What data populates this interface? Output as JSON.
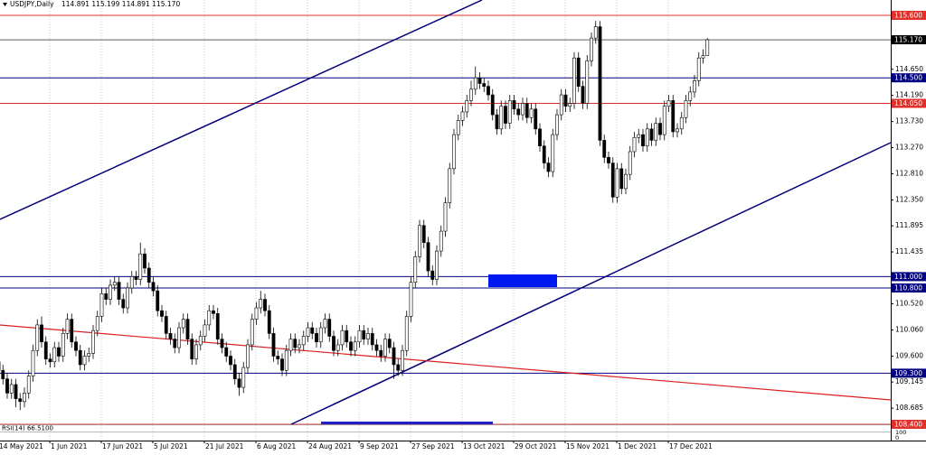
{
  "chart_data": {
    "type": "candlestick",
    "symbol": "USDJPY,Daily",
    "price_header": "114.891 115.199 114.891 115.170",
    "indicator": "RSI(14) 66.5100",
    "indicator_ticks": [
      "100",
      "0"
    ],
    "up_color": "#ffffff",
    "down_color": "#000000",
    "grid": true,
    "ylim": [
      108.4,
      115.87
    ],
    "yticks": [
      {
        "value": 114.65,
        "label": "114.650"
      },
      {
        "value": 114.19,
        "label": "114.190"
      },
      {
        "value": 113.73,
        "label": "113.730"
      },
      {
        "value": 113.27,
        "label": "113.270"
      },
      {
        "value": 112.81,
        "label": "112.810"
      },
      {
        "value": 112.35,
        "label": "112.350"
      },
      {
        "value": 111.895,
        "label": "111.895"
      },
      {
        "value": 111.435,
        "label": "111.435"
      },
      {
        "value": 110.52,
        "label": "110.520"
      },
      {
        "value": 110.06,
        "label": "110.060"
      },
      {
        "value": 109.6,
        "label": "109.600"
      },
      {
        "value": 109.145,
        "label": "109.145"
      },
      {
        "value": 108.685,
        "label": "108.685"
      }
    ],
    "levels": [
      {
        "value": 115.6,
        "label": "115.600",
        "color": "#e0302a"
      },
      {
        "value": 114.5,
        "label": "114.500",
        "color": "#000080"
      },
      {
        "value": 114.05,
        "label": "114.050",
        "color": "#e0302a"
      },
      {
        "value": 111,
        "label": "111.000",
        "color": "#000080"
      },
      {
        "value": 110.8,
        "label": "110.800",
        "color": "#000080"
      },
      {
        "value": 109.3,
        "label": "109.300",
        "color": "#000080"
      },
      {
        "value": 108.4,
        "label": "108.400",
        "color": "#e0302a"
      }
    ],
    "last_price": {
      "value": 115.17,
      "label": "115.170",
      "color": "#000000"
    },
    "categories": [
      "14 May 2021",
      null,
      null,
      null,
      null,
      null,
      null,
      null,
      null,
      null,
      null,
      null,
      "1 Jun 2021",
      null,
      null,
      null,
      null,
      null,
      null,
      null,
      null,
      null,
      null,
      null,
      "17 Jun 2021",
      null,
      null,
      null,
      null,
      null,
      null,
      null,
      null,
      null,
      null,
      null,
      "5 Jul 2021",
      null,
      null,
      null,
      null,
      null,
      null,
      null,
      null,
      null,
      null,
      null,
      "21 Jul 2021",
      null,
      null,
      null,
      null,
      null,
      null,
      null,
      null,
      null,
      null,
      null,
      "6 Aug 2021",
      null,
      null,
      null,
      null,
      null,
      null,
      null,
      null,
      null,
      null,
      null,
      "24 Aug 2021",
      null,
      null,
      null,
      null,
      null,
      null,
      null,
      null,
      null,
      null,
      null,
      "9 Sep 2021",
      null,
      null,
      null,
      null,
      null,
      null,
      null,
      null,
      null,
      null,
      null,
      "27 Sep 2021",
      null,
      null,
      null,
      null,
      null,
      null,
      null,
      null,
      null,
      null,
      null,
      "13 Oct 2021",
      null,
      null,
      null,
      null,
      null,
      null,
      null,
      null,
      null,
      null,
      null,
      "29 Oct 2021",
      null,
      null,
      null,
      null,
      null,
      null,
      null,
      null,
      null,
      null,
      null,
      "15 Nov 2021",
      null,
      null,
      null,
      null,
      null,
      null,
      null,
      null,
      null,
      null,
      null,
      "1 Dec 2021",
      null,
      null,
      null,
      null,
      null,
      null,
      null,
      null,
      null,
      null,
      null,
      "17 Dec 2021",
      null,
      null,
      null,
      null,
      null,
      null,
      null,
      null,
      null
    ],
    "ohlc": [
      [
        109.5,
        109.6,
        109.25,
        109.35
      ],
      [
        109.35,
        109.45,
        109.1,
        109.2
      ],
      [
        109.2,
        109.3,
        108.85,
        108.95
      ],
      [
        108.95,
        109.2,
        108.85,
        109.1
      ],
      [
        109.1,
        109.2,
        108.7,
        108.85
      ],
      [
        108.85,
        108.95,
        108.65,
        108.8
      ],
      [
        108.8,
        109.05,
        108.7,
        108.95
      ],
      [
        108.95,
        109.35,
        108.85,
        109.25
      ],
      [
        109.25,
        109.8,
        109.15,
        109.7
      ],
      [
        109.7,
        110.25,
        109.6,
        110.15
      ],
      [
        110.15,
        110.3,
        109.75,
        109.85
      ],
      [
        109.85,
        109.95,
        109.45,
        109.55
      ],
      [
        109.55,
        109.65,
        109.4,
        109.5
      ],
      [
        109.5,
        109.85,
        109.4,
        109.75
      ],
      [
        109.75,
        109.85,
        109.5,
        109.6
      ],
      [
        109.6,
        110.1,
        109.5,
        110
      ],
      [
        110,
        110.35,
        109.9,
        110.25
      ],
      [
        110.25,
        110.35,
        109.75,
        109.85
      ],
      [
        109.85,
        109.95,
        109.6,
        109.7
      ],
      [
        109.7,
        109.8,
        109.35,
        109.45
      ],
      [
        109.45,
        109.7,
        109.35,
        109.6
      ],
      [
        109.6,
        109.75,
        109.5,
        109.65
      ],
      [
        109.65,
        110.15,
        109.55,
        110.05
      ],
      [
        110.05,
        110.4,
        109.95,
        110.3
      ],
      [
        110.3,
        110.8,
        110.2,
        110.7
      ],
      [
        110.7,
        110.8,
        110.5,
        110.6
      ],
      [
        110.6,
        110.95,
        110.5,
        110.85
      ],
      [
        110.85,
        111,
        110.75,
        110.9
      ],
      [
        110.9,
        111,
        110.5,
        110.6
      ],
      [
        110.6,
        110.7,
        110.35,
        110.45
      ],
      [
        110.45,
        110.9,
        110.35,
        110.8
      ],
      [
        110.8,
        111.1,
        110.7,
        111
      ],
      [
        111,
        111.1,
        110.85,
        110.95
      ],
      [
        110.95,
        111.6,
        110.85,
        111.4
      ],
      [
        111.4,
        111.5,
        111.05,
        111.15
      ],
      [
        111.15,
        111.25,
        110.8,
        110.9
      ],
      [
        110.9,
        111,
        110.65,
        110.75
      ],
      [
        110.75,
        110.85,
        110.3,
        110.4
      ],
      [
        110.4,
        110.5,
        110.2,
        110.3
      ],
      [
        110.3,
        110.4,
        109.9,
        110
      ],
      [
        110,
        110.1,
        109.8,
        109.9
      ],
      [
        109.9,
        110,
        109.65,
        109.75
      ],
      [
        109.75,
        110.2,
        109.65,
        110.1
      ],
      [
        110.1,
        110.35,
        110,
        110.25
      ],
      [
        110.25,
        110.35,
        109.8,
        109.9
      ],
      [
        109.9,
        110,
        109.45,
        109.55
      ],
      [
        109.55,
        109.9,
        109.45,
        109.8
      ],
      [
        109.8,
        110.05,
        109.7,
        109.95
      ],
      [
        109.95,
        110.25,
        109.85,
        110.15
      ],
      [
        110.15,
        110.5,
        110.05,
        110.4
      ],
      [
        110.4,
        110.5,
        110.25,
        110.35
      ],
      [
        110.35,
        110.45,
        109.8,
        109.9
      ],
      [
        109.9,
        110,
        109.65,
        109.75
      ],
      [
        109.75,
        109.85,
        109.5,
        109.6
      ],
      [
        109.6,
        109.7,
        109.35,
        109.45
      ],
      [
        109.45,
        109.55,
        109.1,
        109.2
      ],
      [
        109.2,
        109.3,
        108.9,
        109.05
      ],
      [
        109.05,
        109.5,
        108.95,
        109.4
      ],
      [
        109.4,
        109.9,
        109.3,
        109.8
      ],
      [
        109.8,
        110.35,
        109.7,
        110.25
      ],
      [
        110.25,
        110.55,
        110.15,
        110.45
      ],
      [
        110.45,
        110.75,
        110.35,
        110.6
      ],
      [
        110.6,
        110.7,
        110.3,
        110.4
      ],
      [
        110.4,
        110.5,
        109.9,
        110
      ],
      [
        110,
        110.1,
        109.5,
        109.6
      ],
      [
        109.6,
        109.7,
        109.45,
        109.55
      ],
      [
        109.55,
        109.65,
        109.25,
        109.35
      ],
      [
        109.35,
        109.8,
        109.25,
        109.7
      ],
      [
        109.7,
        110,
        109.6,
        109.9
      ],
      [
        109.9,
        110,
        109.65,
        109.75
      ],
      [
        109.75,
        109.9,
        109.65,
        109.8
      ],
      [
        109.8,
        110.05,
        109.7,
        109.95
      ],
      [
        109.95,
        110.2,
        109.85,
        110.1
      ],
      [
        110.1,
        110.2,
        109.9,
        110
      ],
      [
        110,
        110.1,
        109.75,
        109.85
      ],
      [
        109.85,
        110.2,
        109.75,
        110.1
      ],
      [
        110.1,
        110.35,
        110,
        110.25
      ],
      [
        110.25,
        110.35,
        109.85,
        109.95
      ],
      [
        109.95,
        110.05,
        109.6,
        109.7
      ],
      [
        109.7,
        109.9,
        109.6,
        109.8
      ],
      [
        109.8,
        110.15,
        109.7,
        110.05
      ],
      [
        110.05,
        110.15,
        109.75,
        109.85
      ],
      [
        109.85,
        109.95,
        109.6,
        109.7
      ],
      [
        109.7,
        109.95,
        109.6,
        109.85
      ],
      [
        109.85,
        110.15,
        109.75,
        110.05
      ],
      [
        110.05,
        110.15,
        109.8,
        109.9
      ],
      [
        109.9,
        110.1,
        109.8,
        110
      ],
      [
        110,
        110.1,
        109.7,
        109.8
      ],
      [
        109.8,
        109.9,
        109.6,
        109.7
      ],
      [
        109.7,
        109.8,
        109.5,
        109.6
      ],
      [
        109.6,
        110,
        109.5,
        109.9
      ],
      [
        109.9,
        110,
        109.65,
        109.75
      ],
      [
        109.75,
        109.85,
        109.2,
        109.45
      ],
      [
        109.45,
        109.55,
        109.25,
        109.35
      ],
      [
        109.35,
        109.8,
        109.25,
        109.7
      ],
      [
        109.7,
        110.4,
        109.6,
        110.3
      ],
      [
        110.3,
        111,
        110.2,
        110.9
      ],
      [
        110.9,
        111.45,
        110.8,
        111.35
      ],
      [
        111.35,
        112,
        111.25,
        111.9
      ],
      [
        111.9,
        112,
        111.5,
        111.6
      ],
      [
        111.6,
        111.7,
        111,
        111.1
      ],
      [
        111.1,
        111.2,
        110.85,
        110.95
      ],
      [
        110.95,
        111.55,
        110.85,
        111.45
      ],
      [
        111.45,
        111.9,
        111.35,
        111.8
      ],
      [
        111.8,
        112.4,
        111.7,
        112.3
      ],
      [
        112.3,
        113,
        112.2,
        112.9
      ],
      [
        112.9,
        113.6,
        112.8,
        113.5
      ],
      [
        113.5,
        113.85,
        113.4,
        113.75
      ],
      [
        113.75,
        114,
        113.65,
        113.9
      ],
      [
        113.9,
        114.2,
        113.8,
        114.1
      ],
      [
        114.1,
        114.45,
        114,
        114.3
      ],
      [
        114.3,
        114.7,
        114.2,
        114.5
      ],
      [
        114.5,
        114.6,
        114.3,
        114.4
      ],
      [
        114.4,
        114.5,
        114.25,
        114.35
      ],
      [
        114.35,
        114.45,
        114.1,
        114.2
      ],
      [
        114.2,
        114.3,
        113.75,
        113.85
      ],
      [
        113.85,
        113.95,
        113.5,
        113.6
      ],
      [
        113.6,
        114.1,
        113.5,
        114
      ],
      [
        114,
        114.1,
        113.6,
        113.7
      ],
      [
        113.7,
        114.2,
        113.6,
        114.1
      ],
      [
        114.1,
        114.2,
        113.85,
        113.95
      ],
      [
        113.95,
        114.05,
        113.75,
        113.85
      ],
      [
        113.85,
        114.15,
        113.75,
        114.05
      ],
      [
        114.05,
        114.15,
        113.7,
        113.8
      ],
      [
        113.8,
        114.05,
        113.7,
        113.95
      ],
      [
        113.95,
        114.05,
        113.5,
        113.6
      ],
      [
        113.6,
        113.7,
        113.2,
        113.3
      ],
      [
        113.3,
        113.4,
        112.9,
        113
      ],
      [
        113,
        113.1,
        112.75,
        112.85
      ],
      [
        112.85,
        113.6,
        112.75,
        113.5
      ],
      [
        113.5,
        113.95,
        113.4,
        113.85
      ],
      [
        113.85,
        114.3,
        113.75,
        114.2
      ],
      [
        114.2,
        114.3,
        113.9,
        114
      ],
      [
        114,
        114.15,
        113.9,
        114.05
      ],
      [
        114.05,
        114.95,
        113.95,
        114.85
      ],
      [
        114.85,
        114.95,
        114.25,
        114.35
      ],
      [
        114.35,
        114.45,
        113.95,
        114.05
      ],
      [
        114.05,
        114.9,
        113.95,
        114.8
      ],
      [
        114.8,
        115.3,
        114.7,
        115.2
      ],
      [
        115.2,
        115.5,
        115.1,
        115.4
      ],
      [
        115.4,
        115.5,
        113.3,
        113.4
      ],
      [
        113.4,
        113.5,
        113,
        113.1
      ],
      [
        113.1,
        113.2,
        112.9,
        113
      ],
      [
        113,
        113.1,
        112.3,
        112.4
      ],
      [
        112.4,
        113,
        112.3,
        112.9
      ],
      [
        112.9,
        113,
        112.45,
        112.55
      ],
      [
        112.55,
        112.9,
        112.45,
        112.8
      ],
      [
        112.8,
        113.3,
        112.7,
        113.2
      ],
      [
        113.2,
        113.55,
        113.1,
        113.45
      ],
      [
        113.45,
        113.6,
        113.35,
        113.5
      ],
      [
        113.5,
        113.6,
        113.2,
        113.3
      ],
      [
        113.3,
        113.7,
        113.2,
        113.6
      ],
      [
        113.6,
        113.7,
        113.3,
        113.4
      ],
      [
        113.4,
        113.8,
        113.3,
        113.7
      ],
      [
        113.7,
        113.8,
        113.4,
        113.5
      ],
      [
        113.5,
        114.1,
        113.4,
        114
      ],
      [
        114,
        114.2,
        113.9,
        114.1
      ],
      [
        114.1,
        114.2,
        113.45,
        113.55
      ],
      [
        113.55,
        113.7,
        113.45,
        113.6
      ],
      [
        113.6,
        113.9,
        113.5,
        113.8
      ],
      [
        113.8,
        114.2,
        113.7,
        114.1
      ],
      [
        114.1,
        114.35,
        114,
        114.25
      ],
      [
        114.25,
        114.55,
        114.15,
        114.45
      ],
      [
        114.45,
        114.95,
        114.35,
        114.85
      ],
      [
        114.85,
        115,
        114.75,
        114.89
      ],
      [
        114.891,
        115.199,
        114.891,
        115.17
      ]
    ]
  }
}
